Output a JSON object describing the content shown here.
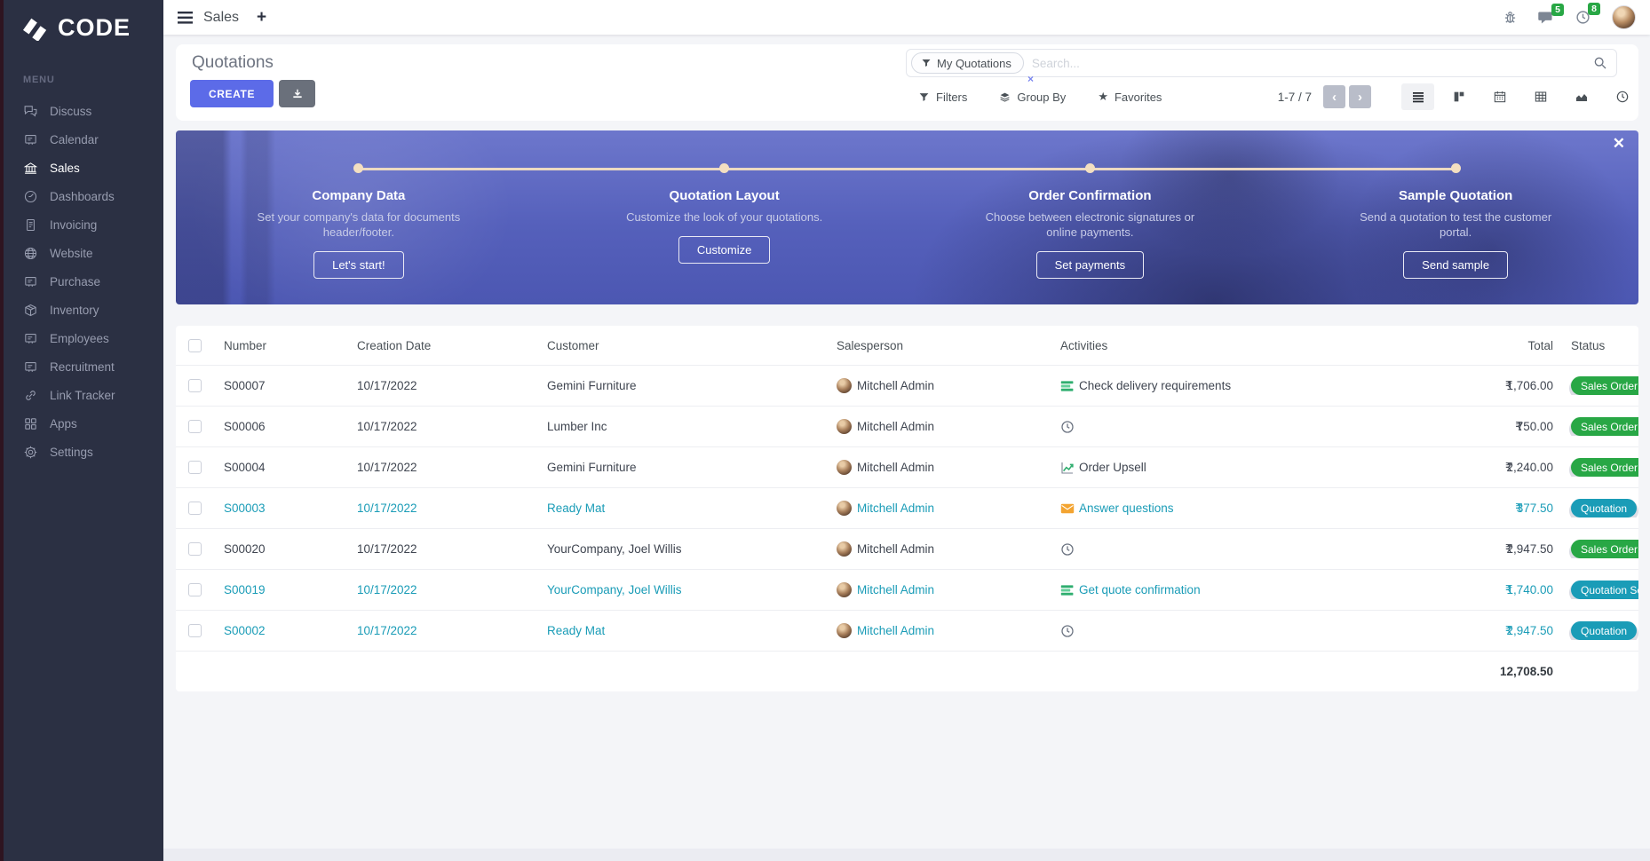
{
  "colors": {
    "accent": "#5c6be8",
    "teal": "#1a9cb7",
    "green": "#28a745",
    "sidebar": "#2b3043",
    "banner": "#5560bb",
    "timeline": "#f3dfc1"
  },
  "brand": {
    "logo_text": "CODE",
    "menu_label": "MENU"
  },
  "sidebar": {
    "items": [
      {
        "label": "Discuss",
        "icon": "chat-bubbles-icon",
        "active": false
      },
      {
        "label": "Calendar",
        "icon": "screen-icon",
        "active": false
      },
      {
        "label": "Sales",
        "icon": "bank-icon",
        "active": true
      },
      {
        "label": "Dashboards",
        "icon": "gauge-icon",
        "active": false
      },
      {
        "label": "Invoicing",
        "icon": "invoice-icon",
        "active": false
      },
      {
        "label": "Website",
        "icon": "globe-icon",
        "active": false
      },
      {
        "label": "Purchase",
        "icon": "screen-icon",
        "active": false
      },
      {
        "label": "Inventory",
        "icon": "box-icon",
        "active": false
      },
      {
        "label": "Employees",
        "icon": "screen-icon",
        "active": false
      },
      {
        "label": "Recruitment",
        "icon": "screen-icon",
        "active": false
      },
      {
        "label": "Link Tracker",
        "icon": "link-icon",
        "active": false
      },
      {
        "label": "Apps",
        "icon": "grid-icon",
        "active": false
      },
      {
        "label": "Settings",
        "icon": "gear-icon",
        "active": false
      }
    ]
  },
  "topbar": {
    "app_title": "Sales",
    "messages_badge": "5",
    "activities_badge": "8"
  },
  "control_panel": {
    "title": "Quotations",
    "create_label": "CREATE",
    "filter_chip": "My Quotations",
    "search_placeholder": "Search...",
    "filters_label": "Filters",
    "groupby_label": "Group By",
    "favorites_label": "Favorites",
    "pager": "1-7 / 7"
  },
  "banner": {
    "steps": [
      {
        "title": "Company Data",
        "desc": "Set your company's data for documents header/footer.",
        "button": "Let's start!"
      },
      {
        "title": "Quotation Layout",
        "desc": "Customize the look of your quotations.",
        "button": "Customize"
      },
      {
        "title": "Order Confirmation",
        "desc": "Choose between electronic signatures or online payments.",
        "button": "Set payments"
      },
      {
        "title": "Sample Quotation",
        "desc": "Send a quotation to test the customer portal.",
        "button": "Send sample"
      }
    ]
  },
  "table": {
    "columns": {
      "number": "Number",
      "date": "Creation Date",
      "customer": "Customer",
      "salesperson": "Salesperson",
      "activities": "Activities",
      "total": "Total",
      "status": "Status"
    },
    "rows": [
      {
        "number": "S00007",
        "date": "10/17/2022",
        "customer": "Gemini Furniture",
        "salesperson": "Mitchell Admin",
        "activity_icon": "tasks-icon",
        "activity": "Check delivery requirements",
        "currency": "₹",
        "total": "1,706.00",
        "status": "Sales Order",
        "status_color": "green",
        "teal": false
      },
      {
        "number": "S00006",
        "date": "10/17/2022",
        "customer": "Lumber Inc",
        "salesperson": "Mitchell Admin",
        "activity_icon": "clock-icon",
        "activity": "",
        "currency": "₹",
        "total": "750.00",
        "status": "Sales Order",
        "status_color": "green",
        "teal": false
      },
      {
        "number": "S00004",
        "date": "10/17/2022",
        "customer": "Gemini Furniture",
        "salesperson": "Mitchell Admin",
        "activity_icon": "chart-up-icon",
        "activity": "Order Upsell",
        "currency": "₹",
        "total": "2,240.00",
        "status": "Sales Order",
        "status_color": "green",
        "teal": false
      },
      {
        "number": "S00003",
        "date": "10/17/2022",
        "customer": "Ready Mat",
        "salesperson": "Mitchell Admin",
        "activity_icon": "envelope-icon",
        "activity": "Answer questions",
        "currency": "₹",
        "total": "377.50",
        "status": "Quotation",
        "status_color": "teal",
        "teal": true
      },
      {
        "number": "S00020",
        "date": "10/17/2022",
        "customer": "YourCompany, Joel Willis",
        "salesperson": "Mitchell Admin",
        "activity_icon": "clock-icon",
        "activity": "",
        "currency": "₹",
        "total": "2,947.50",
        "status": "Sales Order",
        "status_color": "green",
        "teal": false
      },
      {
        "number": "S00019",
        "date": "10/17/2022",
        "customer": "YourCompany, Joel Willis",
        "salesperson": "Mitchell Admin",
        "activity_icon": "tasks-icon",
        "activity": "Get quote confirmation",
        "currency": "₹",
        "total": "1,740.00",
        "status": "Quotation Se",
        "status_color": "teal",
        "teal": true
      },
      {
        "number": "S00002",
        "date": "10/17/2022",
        "customer": "Ready Mat",
        "salesperson": "Mitchell Admin",
        "activity_icon": "clock-icon",
        "activity": "",
        "currency": "₹",
        "total": "2,947.50",
        "status": "Quotation",
        "status_color": "teal",
        "teal": true
      }
    ],
    "footer_total": "12,708.50"
  }
}
